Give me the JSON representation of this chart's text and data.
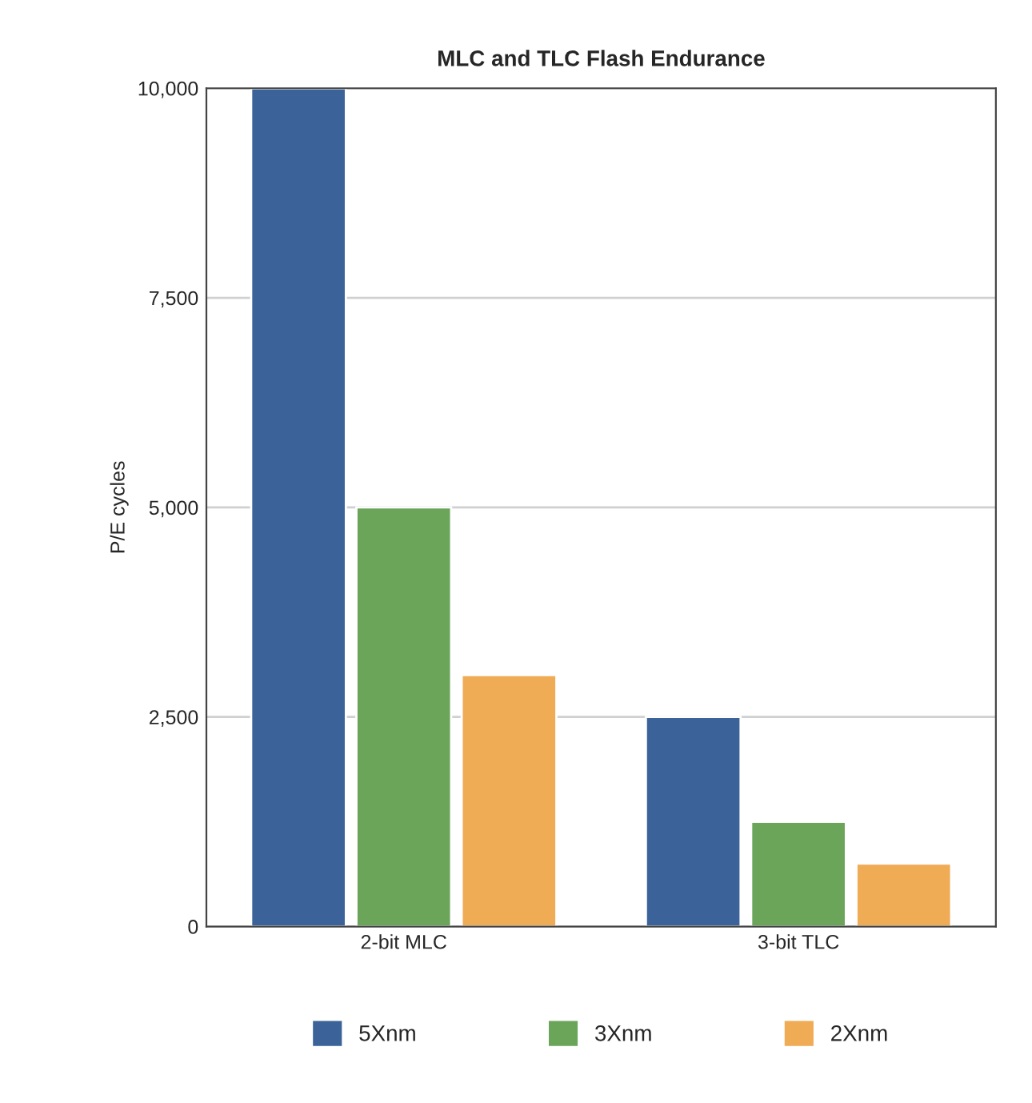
{
  "chart_data": {
    "type": "bar",
    "title": "MLC and TLC Flash Endurance",
    "ylabel": "P/E cycles",
    "categories": [
      "2-bit MLC",
      "3-bit TLC"
    ],
    "series": [
      {
        "name": "5Xnm",
        "color": "#3b6399",
        "values": [
          10000,
          2500
        ]
      },
      {
        "name": "3Xnm",
        "color": "#6aa55a",
        "values": [
          5000,
          1250
        ]
      },
      {
        "name": "2Xnm",
        "color": "#f0ab55",
        "values": [
          3000,
          750
        ]
      }
    ],
    "ylim": [
      0,
      10000
    ],
    "yticks": [
      {
        "value": 0,
        "label": "0"
      },
      {
        "value": 2500,
        "label": "2,500"
      },
      {
        "value": 5000,
        "label": "5,000"
      },
      {
        "value": 7500,
        "label": "7,500"
      },
      {
        "value": 10000,
        "label": "10,000"
      }
    ],
    "grid": "y",
    "legend": "bottom"
  }
}
